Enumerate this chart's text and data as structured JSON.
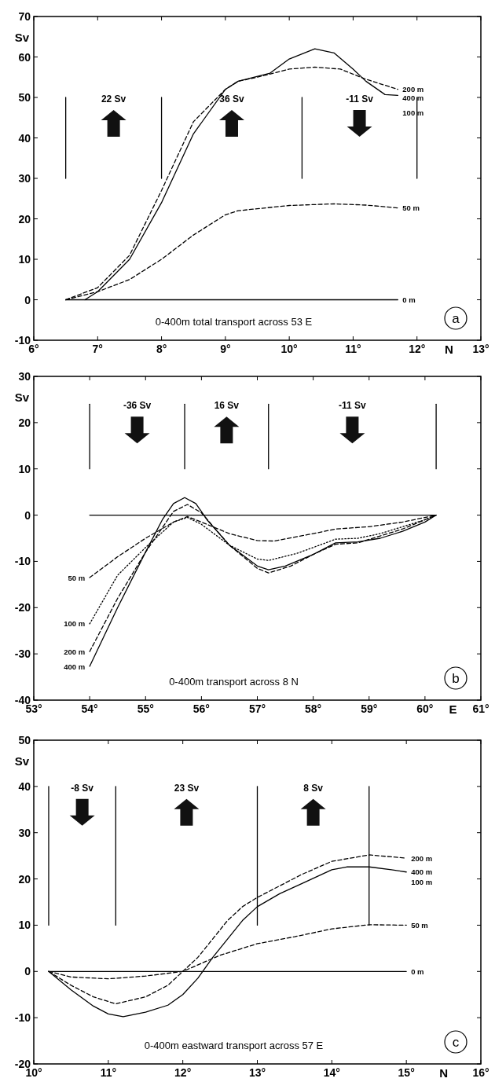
{
  "chart_data": [
    {
      "type": "line",
      "title": "0-400m total transport across 53  E",
      "xlabel": "N",
      "ylabel": "Sv",
      "xlim": [
        6,
        13
      ],
      "ylim": [
        -10,
        70
      ],
      "xticks": [
        {
          "value": 6,
          "label": "6°"
        },
        {
          "value": 7,
          "label": "7°"
        },
        {
          "value": 8,
          "label": "8°"
        },
        {
          "value": 9,
          "label": "9°"
        },
        {
          "value": 10,
          "label": "10°"
        },
        {
          "value": 11,
          "label": "11°"
        },
        {
          "value": 12,
          "label": "12°"
        },
        {
          "value": 13,
          "label": "13°"
        }
      ],
      "yticks": [
        -10,
        0,
        10,
        20,
        30,
        40,
        50,
        60,
        70
      ],
      "series": [
        {
          "name": "400 m",
          "color": "#000000",
          "line_style": "solid",
          "x": [
            6.8,
            7.0,
            7.5,
            8.0,
            8.5,
            9.0,
            9.2,
            9.7,
            10.0,
            10.4,
            10.7,
            11.0,
            11.2,
            11.5,
            11.7
          ],
          "values": [
            0,
            2,
            10,
            24,
            41,
            52,
            54,
            56,
            59.5,
            62,
            61,
            57,
            54,
            50.7,
            50.5
          ]
        },
        {
          "name": "200 m",
          "color": "#000000",
          "line_style": "dashed",
          "x": [
            6.5,
            7.0,
            7.5,
            8.0,
            8.5,
            9.0,
            9.2,
            9.5,
            10.0,
            10.4,
            10.8,
            11.2,
            11.7
          ],
          "values": [
            0,
            3,
            11,
            27,
            44,
            52,
            54,
            55,
            57,
            57.5,
            57,
            54.5,
            52
          ]
        },
        {
          "name": "50 m",
          "color": "#000000",
          "line_style": "dashed",
          "x": [
            6.5,
            7.0,
            7.5,
            8.0,
            8.5,
            9.0,
            9.2,
            9.5,
            10.0,
            10.7,
            11.2,
            11.7
          ],
          "values": [
            0,
            2,
            5,
            10,
            16,
            21,
            22,
            22.5,
            23.3,
            23.7,
            23.4,
            22.7
          ]
        },
        {
          "name": "0 m",
          "color": "#000000",
          "line_style": "solid",
          "x": [
            6.5,
            11.7
          ],
          "values": [
            0,
            0
          ]
        },
        {
          "color": "#000000",
          "line_style": "solid",
          "x": [
            6.5,
            6.5
          ],
          "values": [
            30,
            50
          ]
        },
        {
          "color": "#000000",
          "line_style": "solid",
          "x": [
            8.0,
            8.0
          ],
          "values": [
            30,
            50
          ]
        },
        {
          "color": "#000000",
          "line_style": "solid",
          "x": [
            10.2,
            10.2
          ],
          "values": [
            30,
            50
          ]
        },
        {
          "color": "#000000",
          "line_style": "solid",
          "x": [
            12.0,
            12.0
          ],
          "values": [
            30,
            50
          ]
        }
      ],
      "annotations": [
        "22 Sv",
        "36 Sv",
        "-11 Sv",
        "100 m",
        "a"
      ]
    },
    {
      "type": "line",
      "title": "0-400m transport across 8  N",
      "xlabel": "E",
      "ylabel": "Sv",
      "xlim": [
        53,
        61
      ],
      "ylim": [
        -40,
        30
      ],
      "xticks": [
        {
          "value": 53,
          "label": "53°"
        },
        {
          "value": 54,
          "label": "54°"
        },
        {
          "value": 55,
          "label": "55°"
        },
        {
          "value": 56,
          "label": "56°"
        },
        {
          "value": 57,
          "label": "57°"
        },
        {
          "value": 58,
          "label": "58°"
        },
        {
          "value": 59,
          "label": "59°"
        },
        {
          "value": 60,
          "label": "60°"
        },
        {
          "value": 61,
          "label": "61°"
        }
      ],
      "yticks": [
        -40,
        -30,
        -20,
        -10,
        0,
        10,
        20,
        30
      ],
      "series": [
        {
          "name": "50 m",
          "color": "#000000",
          "line_style": "dashed",
          "x": [
            54.0,
            54.5,
            55.0,
            55.5,
            55.75,
            56.0,
            56.5,
            57.0,
            57.3,
            58.0,
            58.4,
            59.0,
            59.6,
            60.2
          ],
          "values": [
            -13.5,
            -9,
            -5,
            -1.5,
            -0.3,
            -1.5,
            -4,
            -5.5,
            -5.6,
            -4,
            -3,
            -2.5,
            -1.5,
            0
          ]
        },
        {
          "name": "100 m",
          "color": "#000000",
          "line_style": "dotted",
          "x": [
            54.0,
            54.5,
            55.0,
            55.5,
            55.75,
            56.0,
            56.5,
            57.0,
            57.2,
            57.7,
            58.0,
            58.4,
            58.8,
            59.2,
            59.6,
            60.0,
            60.2
          ],
          "values": [
            -23.5,
            -13,
            -7,
            -1.5,
            -0.5,
            -2,
            -6.5,
            -9.5,
            -9.8,
            -8.3,
            -7,
            -5.2,
            -5,
            -4,
            -2.5,
            -1,
            0
          ]
        },
        {
          "name": "200 m",
          "color": "#000000",
          "line_style": "dashed",
          "x": [
            54.0,
            54.5,
            55.0,
            55.5,
            55.75,
            56.0,
            56.5,
            57.0,
            57.2,
            57.6,
            58.0,
            58.4,
            58.8,
            59.2,
            59.6,
            60.0,
            60.2
          ],
          "values": [
            -29.5,
            -18,
            -8,
            0.8,
            2.3,
            0.5,
            -6.5,
            -11.5,
            -12.5,
            -11,
            -8.5,
            -6.3,
            -6,
            -4.5,
            -3,
            -1,
            0
          ]
        },
        {
          "name": "400 m",
          "color": "#000000",
          "line_style": "solid",
          "x": [
            54.0,
            54.5,
            55.0,
            55.3,
            55.5,
            55.7,
            55.9,
            56.1,
            56.5,
            57.0,
            57.2,
            57.5,
            58.0,
            58.4,
            58.8,
            59.2,
            59.6,
            60.0,
            60.2
          ],
          "values": [
            -32.7,
            -20,
            -8,
            -1,
            2.5,
            3.8,
            2.5,
            -1,
            -6.5,
            -11,
            -11.8,
            -11,
            -8.5,
            -6,
            -5.8,
            -5,
            -3.5,
            -1.5,
            0
          ]
        },
        {
          "color": "#000000",
          "line_style": "solid",
          "x": [
            54.0,
            60.2
          ],
          "values": [
            0,
            0
          ]
        },
        {
          "color": "#000000",
          "line_style": "solid",
          "x": [
            54.0,
            54.0
          ],
          "values": [
            10,
            24
          ]
        },
        {
          "color": "#000000",
          "line_style": "solid",
          "x": [
            55.7,
            55.7
          ],
          "values": [
            10,
            24
          ]
        },
        {
          "color": "#000000",
          "line_style": "solid",
          "x": [
            57.2,
            57.2
          ],
          "values": [
            10,
            24
          ]
        },
        {
          "color": "#000000",
          "line_style": "solid",
          "x": [
            60.2,
            60.2
          ],
          "values": [
            10,
            24
          ]
        }
      ],
      "annotations": [
        "-36 Sv",
        "16 Sv",
        "-11 Sv",
        "b"
      ]
    },
    {
      "type": "line",
      "title": "0-400m eastward transport across 57  E",
      "xlabel": "N",
      "ylabel": "Sv",
      "xlim": [
        10,
        16
      ],
      "ylim": [
        -20,
        50
      ],
      "xticks": [
        {
          "value": 10,
          "label": "10°"
        },
        {
          "value": 11,
          "label": "11°"
        },
        {
          "value": 12,
          "label": "12°"
        },
        {
          "value": 13,
          "label": "13°"
        },
        {
          "value": 14,
          "label": "14°"
        },
        {
          "value": 15,
          "label": "15°"
        },
        {
          "value": 16,
          "label": "16°"
        }
      ],
      "yticks": [
        -20,
        -10,
        0,
        10,
        20,
        30,
        40,
        50
      ],
      "series": [
        {
          "name": "200 m",
          "color": "#000000",
          "line_style": "dashed",
          "x": [
            10.2,
            10.5,
            10.8,
            11.1,
            11.5,
            11.8,
            12.0,
            12.2,
            12.4,
            12.6,
            12.8,
            13.0,
            13.3,
            13.6,
            14.0,
            14.5,
            15.0
          ],
          "values": [
            0,
            -3,
            -5.5,
            -7,
            -5.5,
            -3,
            0,
            3,
            7,
            11,
            14,
            16,
            18.5,
            21,
            23.8,
            25.2,
            24.5
          ]
        },
        {
          "name": "400 m",
          "color": "#000000",
          "line_style": "solid",
          "x": [
            10.2,
            10.5,
            10.8,
            11.0,
            11.2,
            11.5,
            11.8,
            12.0,
            12.2,
            12.4,
            12.6,
            12.8,
            13.0,
            13.3,
            13.6,
            14.0,
            14.2,
            14.5,
            14.8,
            15.0
          ],
          "values": [
            0,
            -4,
            -7.5,
            -9.2,
            -9.8,
            -8.8,
            -7.3,
            -5,
            -1.5,
            3,
            7,
            11,
            14,
            16.8,
            19,
            22,
            22.6,
            22.6,
            22,
            21.5
          ]
        },
        {
          "name": "50 m",
          "color": "#000000",
          "line_style": "dashed",
          "x": [
            10.2,
            10.5,
            11.0,
            11.5,
            12.0,
            12.5,
            13.0,
            13.5,
            14.0,
            14.5,
            15.0
          ],
          "values": [
            0,
            -1.2,
            -1.6,
            -1,
            0,
            3.5,
            6,
            7.5,
            9.2,
            10.1,
            10
          ]
        },
        {
          "name": "0 m",
          "color": "#000000",
          "line_style": "solid",
          "x": [
            10.2,
            15.0
          ],
          "values": [
            0,
            0
          ]
        },
        {
          "color": "#000000",
          "line_style": "solid",
          "x": [
            10.2,
            10.2
          ],
          "values": [
            10,
            40
          ]
        },
        {
          "color": "#000000",
          "line_style": "solid",
          "x": [
            11.1,
            11.1
          ],
          "values": [
            10,
            40
          ]
        },
        {
          "color": "#000000",
          "line_style": "solid",
          "x": [
            13.0,
            13.0
          ],
          "values": [
            10,
            40
          ]
        },
        {
          "color": "#000000",
          "line_style": "solid",
          "x": [
            14.5,
            14.5
          ],
          "values": [
            10,
            40
          ]
        }
      ],
      "annotations": [
        "-8 Sv",
        "23 Sv",
        "8 Sv",
        "100 m",
        "c"
      ]
    }
  ]
}
